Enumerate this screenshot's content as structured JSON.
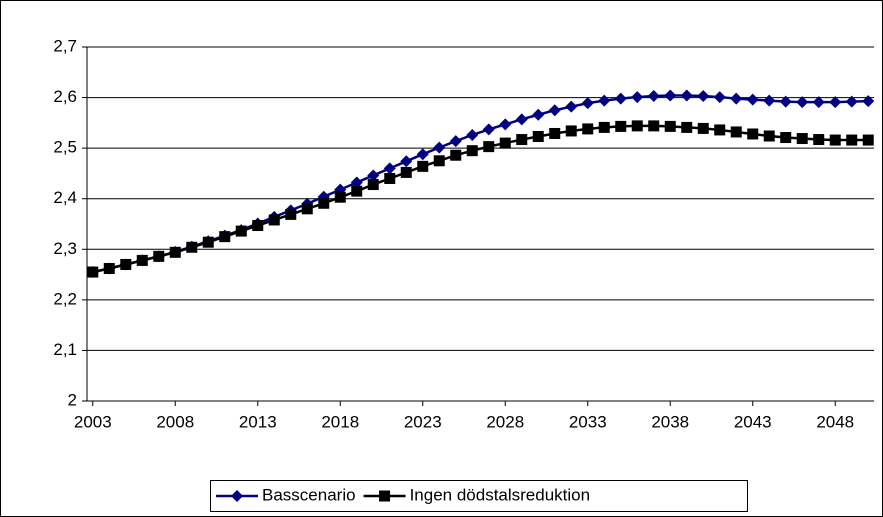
{
  "chart_data": {
    "type": "line",
    "x": [
      2003,
      2004,
      2005,
      2006,
      2007,
      2008,
      2009,
      2010,
      2011,
      2012,
      2013,
      2014,
      2015,
      2016,
      2017,
      2018,
      2019,
      2020,
      2021,
      2022,
      2023,
      2024,
      2025,
      2026,
      2027,
      2028,
      2029,
      2030,
      2031,
      2032,
      2033,
      2034,
      2035,
      2036,
      2037,
      2038,
      2039,
      2040,
      2041,
      2042,
      2043,
      2044,
      2045,
      2046,
      2047,
      2048,
      2049,
      2050
    ],
    "series": [
      {
        "name": "Basscenario",
        "color": "#000080",
        "marker": "diamond",
        "values": [
          2.255,
          2.262,
          2.27,
          2.278,
          2.286,
          2.295,
          2.305,
          2.316,
          2.327,
          2.338,
          2.351,
          2.364,
          2.377,
          2.39,
          2.404,
          2.418,
          2.432,
          2.446,
          2.46,
          2.474,
          2.488,
          2.501,
          2.514,
          2.526,
          2.537,
          2.547,
          2.557,
          2.566,
          2.575,
          2.582,
          2.589,
          2.594,
          2.598,
          2.601,
          2.603,
          2.604,
          2.604,
          2.603,
          2.601,
          2.598,
          2.596,
          2.594,
          2.592,
          2.591,
          2.591,
          2.591,
          2.592,
          2.593
        ]
      },
      {
        "name": "Ingen dödstalsreduktion",
        "color": "#000000",
        "marker": "square",
        "values": [
          2.255,
          2.262,
          2.27,
          2.278,
          2.286,
          2.294,
          2.304,
          2.314,
          2.325,
          2.336,
          2.347,
          2.358,
          2.369,
          2.38,
          2.391,
          2.403,
          2.415,
          2.428,
          2.44,
          2.452,
          2.464,
          2.475,
          2.486,
          2.495,
          2.503,
          2.51,
          2.517,
          2.523,
          2.529,
          2.534,
          2.538,
          2.541,
          2.543,
          2.544,
          2.544,
          2.543,
          2.541,
          2.539,
          2.536,
          2.532,
          2.528,
          2.524,
          2.521,
          2.519,
          2.517,
          2.516,
          2.516,
          2.516
        ]
      }
    ],
    "xlim": [
      2002.65,
      2050.35
    ],
    "xticks": [
      2003,
      2008,
      2013,
      2018,
      2023,
      2028,
      2033,
      2038,
      2043,
      2048
    ],
    "ylim": [
      2,
      2.7
    ],
    "yticks": [
      2,
      {
        "value": 2.1,
        "label": "2,1"
      },
      {
        "value": 2.2,
        "label": "2,2"
      },
      {
        "value": 2.3,
        "label": "2,3"
      },
      {
        "value": 2.4,
        "label": "2,4"
      },
      {
        "value": 2.5,
        "label": "2,5"
      },
      {
        "value": 2.6,
        "label": "2,6"
      },
      {
        "value": 2.7,
        "label": "2,7"
      }
    ],
    "grid": true,
    "legend": "bottom"
  }
}
